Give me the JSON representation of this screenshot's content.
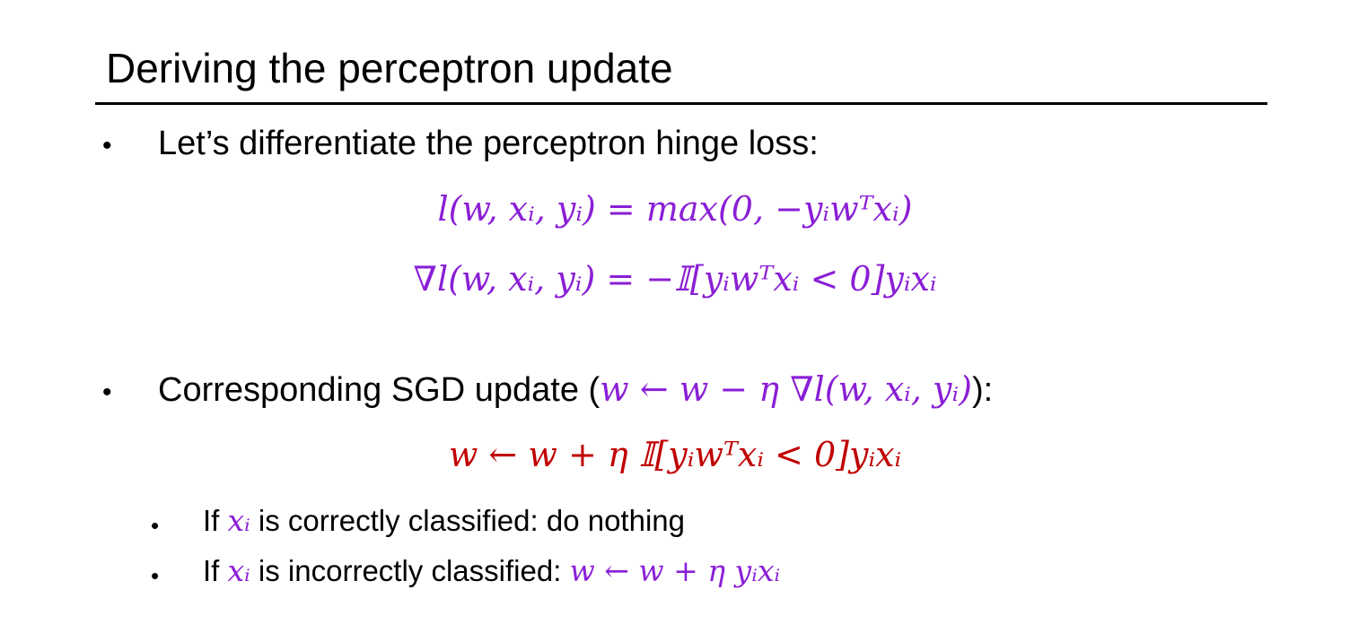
{
  "slide": {
    "title": "Deriving the perceptron update",
    "bullets": [
      {
        "text": "Let’s differentiate the perceptron hinge loss:"
      },
      {
        "text_before": "Corresponding SGD update (",
        "math": "w ← w − η ∇l(w, xᵢ, yᵢ)",
        "text_after": "):"
      }
    ],
    "equations": [
      "l(w, xᵢ, yᵢ) = max(0, −yᵢwᵀxᵢ)",
      "∇l(w, xᵢ, yᵢ) = −𝕀[yᵢwᵀxᵢ < 0]yᵢxᵢ"
    ],
    "update_equation": "w ← w + η 𝕀[yᵢwᵀxᵢ < 0]yᵢxᵢ",
    "sub_bullets": [
      {
        "prefix": "If ",
        "math": "xᵢ",
        "suffix": " is correctly classified: do nothing"
      },
      {
        "prefix": "If ",
        "math": "xᵢ",
        "suffix": " is incorrectly classified: ",
        "math_after": "w ← w + η yᵢxᵢ"
      }
    ],
    "colors": {
      "math_purple": "#8a1fd6",
      "math_red": "#c00000",
      "text": "#000000"
    }
  }
}
